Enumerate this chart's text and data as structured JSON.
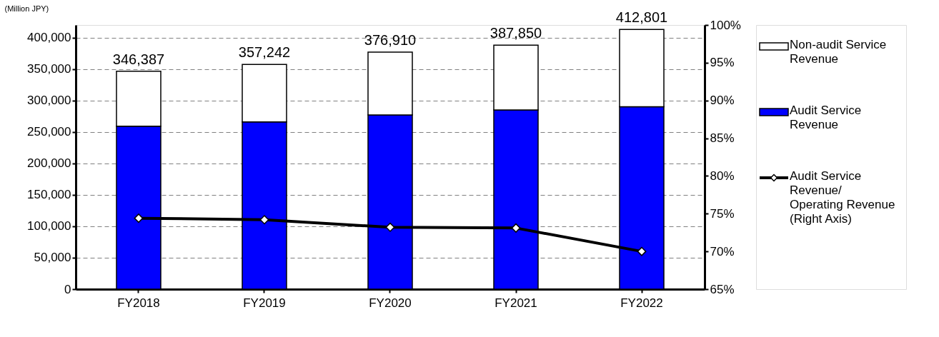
{
  "chart_data": {
    "type": "bar",
    "stacked": true,
    "ylabel": "(Million JPY)",
    "categories": [
      "FY2018",
      "FY2019",
      "FY2020",
      "FY2021",
      "FY2022"
    ],
    "series": [
      {
        "name": "Audit Service Revenue",
        "type": "bar",
        "color": "#0000ff",
        "values": [
          259000,
          266000,
          277000,
          285000,
          290000
        ]
      },
      {
        "name": "Non-audit Service Revenue",
        "type": "bar",
        "color": "#ffffff",
        "values": [
          87387,
          91242,
          99910,
          102850,
          122801
        ]
      },
      {
        "name": "Audit Service Revenue/ Operating Revenue (Right Axis)",
        "type": "line",
        "axis": "y2",
        "color": "#000000",
        "marker": "diamond",
        "values": [
          74.4,
          74.2,
          73.2,
          73.1,
          70.0
        ]
      }
    ],
    "totals": [
      "346,387",
      "357,242",
      "376,910",
      "387,850",
      "412,801"
    ],
    "ylim": [
      0,
      420000
    ],
    "yticks": [
      {
        "value": 0,
        "label": "0"
      },
      {
        "value": 50000,
        "label": "50,000"
      },
      {
        "value": 100000,
        "label": "100,000"
      },
      {
        "value": 150000,
        "label": "150,000"
      },
      {
        "value": 200000,
        "label": "200,000"
      },
      {
        "value": 250000,
        "label": "250,000"
      },
      {
        "value": 300000,
        "label": "300,000"
      },
      {
        "value": 350000,
        "label": "350,000"
      },
      {
        "value": 400000,
        "label": "400,000"
      }
    ],
    "y2lim": [
      65,
      100
    ],
    "y2ticks": [
      {
        "value": 65,
        "label": "65%"
      },
      {
        "value": 70,
        "label": "70%"
      },
      {
        "value": 75,
        "label": "75%"
      },
      {
        "value": 80,
        "label": "80%"
      },
      {
        "value": 85,
        "label": "85%"
      },
      {
        "value": 90,
        "label": "90%"
      },
      {
        "value": 95,
        "label": "95%"
      },
      {
        "value": 100,
        "label": "100%"
      }
    ],
    "grid": "y",
    "legend": "right"
  }
}
